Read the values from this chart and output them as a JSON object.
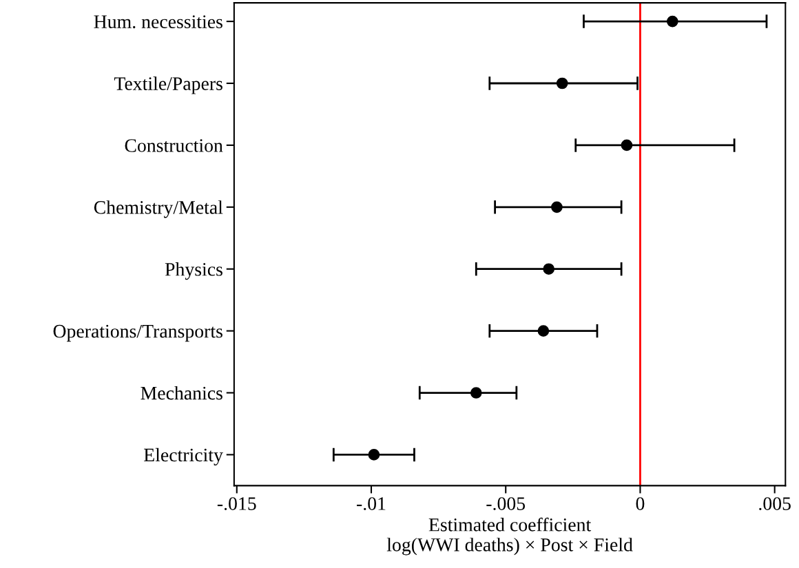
{
  "chart_data": {
    "type": "scatter",
    "orientation": "horizontal",
    "categories": [
      "Hum. necessities",
      "Textile/Papers",
      "Construction",
      "Chemistry/Metal",
      "Physics",
      "Operations/Transports",
      "Mechanics",
      "Electricity"
    ],
    "values": [
      0.0012,
      -0.0029,
      -0.0005,
      -0.0031,
      -0.0034,
      -0.0036,
      -0.0061,
      -0.0099
    ],
    "errors": [
      [
        -0.0021,
        0.0047
      ],
      [
        -0.0056,
        -0.0001
      ],
      [
        -0.0024,
        0.0035
      ],
      [
        -0.0054,
        -0.0007
      ],
      [
        -0.0061,
        -0.0007
      ],
      [
        -0.0056,
        -0.0016
      ],
      [
        -0.0082,
        -0.0046
      ],
      [
        -0.0114,
        -0.0084
      ]
    ],
    "color": "#000000",
    "marker": "circle",
    "xlabel": "Estimated coefficient\nlog(WWI deaths) × Post × Field",
    "xlim": [
      -0.0151,
      0.0054
    ],
    "xticks": [
      {
        "value": -0.015,
        "label": "-.015"
      },
      {
        "value": -0.01,
        "label": "-.01"
      },
      {
        "value": -0.005,
        "label": "-.005"
      },
      {
        "value": 0,
        "label": "0"
      },
      {
        "value": 0.005,
        "label": ".005"
      }
    ],
    "ref_lines": [
      {
        "axis": "x",
        "value": 0,
        "color": "#ff0000"
      }
    ],
    "grid": false,
    "legend": false
  }
}
